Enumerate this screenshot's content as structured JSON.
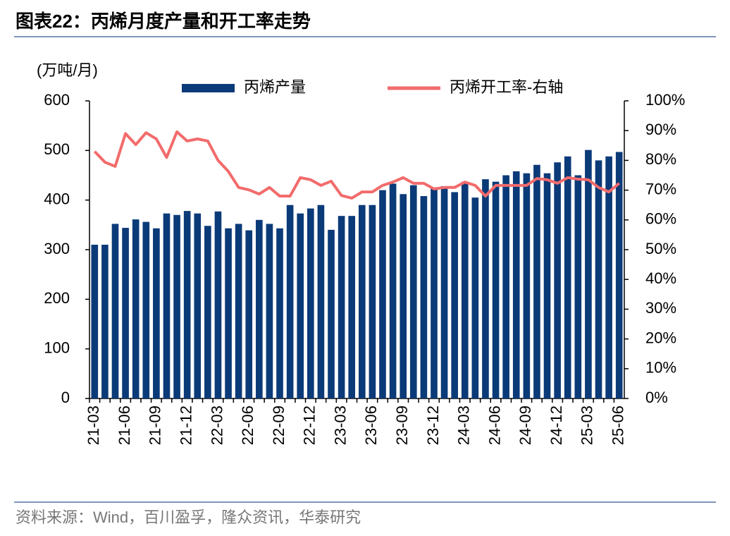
{
  "title": "图表22：丙烯月度产量和开工率走势",
  "source": "资料来源：Wind，百川盈孚，隆众资讯，华泰研究",
  "chart_data": {
    "type": "bar",
    "y_label": "(万吨/月)",
    "categories": [
      "21-03",
      null,
      null,
      "21-06",
      null,
      null,
      "21-09",
      null,
      null,
      "21-12",
      null,
      null,
      "22-03",
      null,
      null,
      "22-06",
      null,
      null,
      "22-09",
      null,
      null,
      "22-12",
      null,
      null,
      "23-03",
      null,
      null,
      "23-06",
      null,
      null,
      "23-09",
      null,
      null,
      "23-12",
      null,
      null,
      "24-03",
      null,
      null,
      "24-06",
      null,
      null,
      "24-09",
      null,
      null,
      "24-12",
      null,
      null,
      "25-03",
      null,
      null,
      "25-06"
    ],
    "series": [
      {
        "name": "丙烯产量",
        "type": "bar",
        "color": "#0b3a78",
        "values": [
          310,
          310,
          352,
          344,
          361,
          356,
          343,
          373,
          370,
          378,
          373,
          348,
          377,
          343,
          352,
          339,
          360,
          352,
          343,
          390,
          373,
          383,
          390,
          340,
          368,
          368,
          390,
          390,
          420,
          433,
          412,
          430,
          408,
          425,
          428,
          416,
          437,
          405,
          442,
          437,
          450,
          458,
          454,
          471,
          454,
          476,
          488,
          450,
          501,
          480,
          488,
          497
        ]
      },
      {
        "name": "丙烯开工率-右轴",
        "type": "line",
        "axis": "y2",
        "color": "#f26b6b",
        "values": [
          83,
          79.4,
          78,
          89,
          85.3,
          89.3,
          87.2,
          81,
          89.6,
          86.5,
          87.2,
          86.5,
          80,
          76.3,
          70.9,
          70.1,
          68.7,
          70.9,
          68,
          68,
          74.2,
          73.5,
          71.6,
          73,
          68.2,
          67.3,
          69.4,
          69.4,
          71.6,
          72.7,
          74.2,
          72.3,
          72.3,
          70.4,
          70.9,
          70.9,
          72.7,
          71.6,
          68,
          71.6,
          71.6,
          71.6,
          71.6,
          73.9,
          73.5,
          72.3,
          74.2,
          73.7,
          73.5,
          70.9,
          69.4,
          72.3
        ]
      }
    ],
    "ylim": [
      0,
      600
    ],
    "yticks": [
      0,
      100,
      200,
      300,
      400,
      500,
      600
    ],
    "y2lim": [
      0,
      100
    ],
    "y2ticks": [
      {
        "value": 0,
        "label": "0%"
      },
      {
        "value": 10,
        "label": "10%"
      },
      {
        "value": 20,
        "label": "20%"
      },
      {
        "value": 30,
        "label": "30%"
      },
      {
        "value": 40,
        "label": "40%"
      },
      {
        "value": 50,
        "label": "50%"
      },
      {
        "value": 60,
        "label": "60%"
      },
      {
        "value": 70,
        "label": "70%"
      },
      {
        "value": 80,
        "label": "80%"
      },
      {
        "value": 90,
        "label": "90%"
      },
      {
        "value": 100,
        "label": "100%"
      }
    ]
  }
}
